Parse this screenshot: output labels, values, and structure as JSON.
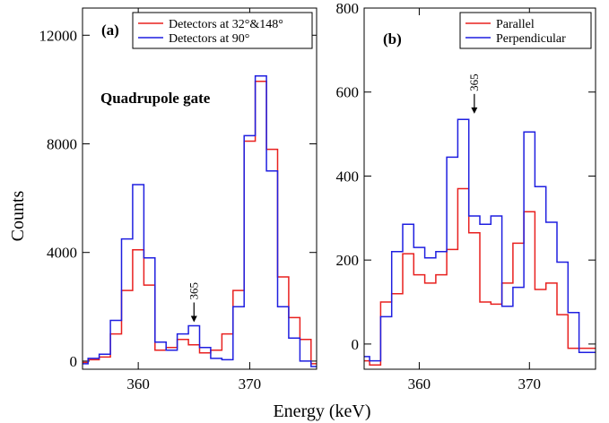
{
  "figure": {
    "xlabel": "Energy (keV)",
    "ylabel": "Counts"
  },
  "chart_data": [
    {
      "type": "line",
      "style": "step",
      "panel_label": "(a)",
      "inset_text": "Quadrupole gate",
      "annotation": {
        "text": "365",
        "x": 365,
        "y": 1300
      },
      "xlim": [
        355,
        376
      ],
      "ylim": [
        -300,
        13000
      ],
      "xticks": [
        360,
        370
      ],
      "yticks": [
        0,
        4000,
        8000,
        12000
      ],
      "legend": "top-right",
      "series": [
        {
          "name": "Detectors at 32°&148°",
          "color": "#e8201f",
          "x": [
            355,
            356,
            357,
            358,
            359,
            360,
            361,
            362,
            363,
            364,
            365,
            366,
            367,
            368,
            369,
            370,
            371,
            372,
            373,
            374,
            375,
            376
          ],
          "values": [
            -50,
            50,
            150,
            1000,
            2600,
            4100,
            2800,
            400,
            500,
            800,
            600,
            300,
            400,
            1000,
            2600,
            8100,
            10300,
            7800,
            3100,
            1600,
            800,
            -100
          ]
        },
        {
          "name": "Detectors at 90°",
          "color": "#1f1fe0",
          "x": [
            355,
            356,
            357,
            358,
            359,
            360,
            361,
            362,
            363,
            364,
            365,
            366,
            367,
            368,
            369,
            370,
            371,
            372,
            373,
            374,
            375,
            376
          ],
          "values": [
            -100,
            100,
            250,
            1500,
            4500,
            6500,
            3800,
            700,
            400,
            1000,
            1300,
            500,
            100,
            50,
            2000,
            8300,
            10500,
            7000,
            2000,
            850,
            0,
            -200
          ]
        }
      ]
    },
    {
      "type": "line",
      "style": "step",
      "panel_label": "(b)",
      "annotation": {
        "text": "365",
        "x": 365,
        "y": 540
      },
      "xlim": [
        355,
        376
      ],
      "ylim": [
        -60,
        800
      ],
      "xticks": [
        360,
        370
      ],
      "yticks": [
        0,
        200,
        400,
        600,
        800
      ],
      "legend": "top-right",
      "series": [
        {
          "name": "Parallel",
          "color": "#e8201f",
          "x": [
            355,
            356,
            357,
            358,
            359,
            360,
            361,
            362,
            363,
            364,
            365,
            366,
            367,
            368,
            369,
            370,
            371,
            372,
            373,
            374,
            375,
            376
          ],
          "values": [
            -40,
            -50,
            100,
            120,
            215,
            165,
            145,
            165,
            225,
            370,
            265,
            100,
            95,
            145,
            240,
            315,
            130,
            145,
            70,
            -10,
            -10,
            -10
          ]
        },
        {
          "name": "Perpendicular",
          "color": "#1f1fe0",
          "x": [
            355,
            356,
            357,
            358,
            359,
            360,
            361,
            362,
            363,
            364,
            365,
            366,
            367,
            368,
            369,
            370,
            371,
            372,
            373,
            374,
            375,
            376
          ],
          "values": [
            -30,
            -40,
            65,
            220,
            285,
            230,
            205,
            220,
            445,
            535,
            305,
            285,
            305,
            90,
            135,
            505,
            375,
            290,
            195,
            75,
            -20,
            -20
          ]
        }
      ]
    }
  ]
}
